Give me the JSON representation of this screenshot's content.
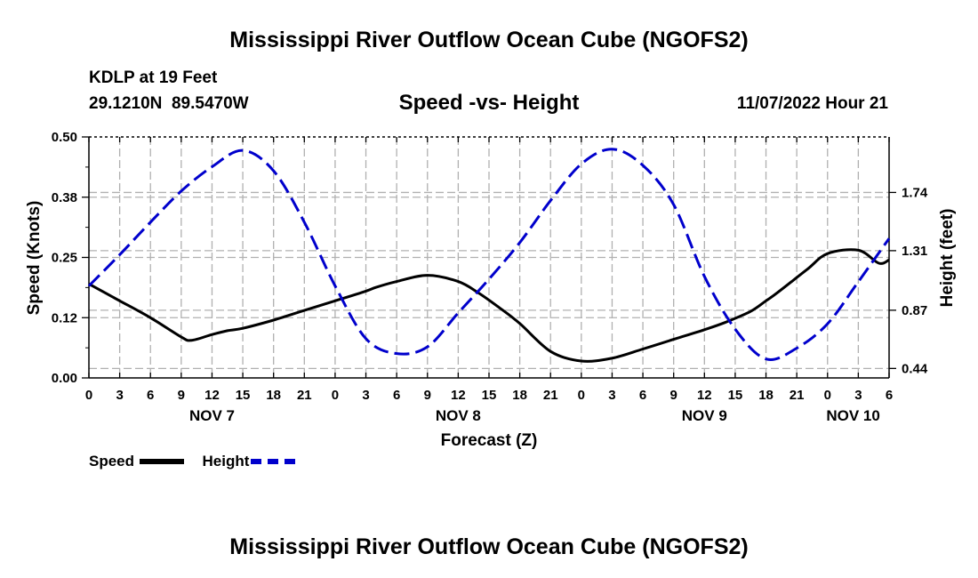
{
  "title": "Mississippi River Outflow Ocean Cube (NGOFS2)",
  "station": "KDLP at 19 Feet",
  "coords": "29.1210N  89.5470W",
  "subtitle": "Speed -vs- Height",
  "timestamp": "11/07/2022 Hour 21",
  "footer_title": "Mississippi River Outflow Ocean Cube (NGOFS2)",
  "legend": {
    "speed_label": "Speed",
    "height_label": "Height",
    "speed_color": "#000000",
    "height_color": "#0000cc"
  },
  "chart_data": {
    "type": "line",
    "title": "Speed -vs- Height",
    "xlabel": "Forecast (Z)",
    "ylabel": "Speed (Knots)",
    "y2label": "Height (feet)",
    "xlim": [
      0,
      78
    ],
    "ylim": [
      0,
      0.5
    ],
    "y2lim": [
      0.37,
      2.15
    ],
    "x_tick_labels": [
      "0",
      "3",
      "6",
      "9",
      "12",
      "15",
      "18",
      "21",
      "0",
      "3",
      "6",
      "9",
      "12",
      "15",
      "18",
      "21",
      "0",
      "3",
      "6",
      "9",
      "12",
      "15",
      "18",
      "21",
      "0",
      "3",
      "6"
    ],
    "day_labels": [
      {
        "label": "NOV 7",
        "x": 12
      },
      {
        "label": "NOV 8",
        "x": 36
      },
      {
        "label": "NOV 9",
        "x": 60
      },
      {
        "label": "NOV 10",
        "x": 74.5
      }
    ],
    "y_ticks": [
      0.0,
      0.125,
      0.25,
      0.375,
      0.5
    ],
    "y_tick_labels": [
      "0.00",
      "0.12",
      "0.25",
      "0.38",
      "0.50"
    ],
    "y2_ticks": [
      0.44,
      0.87,
      1.31,
      1.74
    ],
    "y2_tick_labels": [
      "0.44",
      "0.87",
      "1.31",
      "1.74"
    ],
    "grid": true,
    "series": [
      {
        "name": "Speed",
        "axis": "left",
        "style": "solid",
        "color": "#000000",
        "x": [
          0,
          3,
          6,
          9,
          10,
          12,
          13.5,
          15,
          18,
          21,
          24,
          27,
          28,
          30,
          33,
          36,
          38,
          40,
          42,
          45,
          48,
          51,
          54,
          57,
          60,
          62,
          64.5,
          66,
          67,
          70,
          72,
          75,
          77,
          78
        ],
        "y": [
          0.195,
          0.16,
          0.125,
          0.085,
          0.078,
          0.09,
          0.098,
          0.103,
          0.12,
          0.14,
          0.16,
          0.18,
          0.188,
          0.2,
          0.213,
          0.2,
          0.176,
          0.146,
          0.113,
          0.055,
          0.035,
          0.041,
          0.06,
          0.08,
          0.1,
          0.115,
          0.138,
          0.16,
          0.175,
          0.225,
          0.258,
          0.265,
          0.238,
          0.245
        ]
      },
      {
        "name": "Height",
        "axis": "right",
        "style": "dashed",
        "color": "#0000cc",
        "x": [
          0,
          3,
          6,
          9,
          12,
          15,
          18,
          21,
          24,
          27,
          30,
          33,
          36,
          39,
          42,
          45,
          48,
          51,
          54,
          57,
          60,
          63,
          66,
          69,
          72,
          75,
          78
        ],
        "y": [
          1.05,
          1.28,
          1.52,
          1.75,
          1.93,
          2.05,
          1.9,
          1.52,
          1.05,
          0.66,
          0.55,
          0.6,
          0.85,
          1.1,
          1.37,
          1.68,
          1.95,
          2.06,
          1.94,
          1.65,
          1.12,
          0.73,
          0.51,
          0.59,
          0.77,
          1.08,
          1.4
        ]
      }
    ]
  }
}
